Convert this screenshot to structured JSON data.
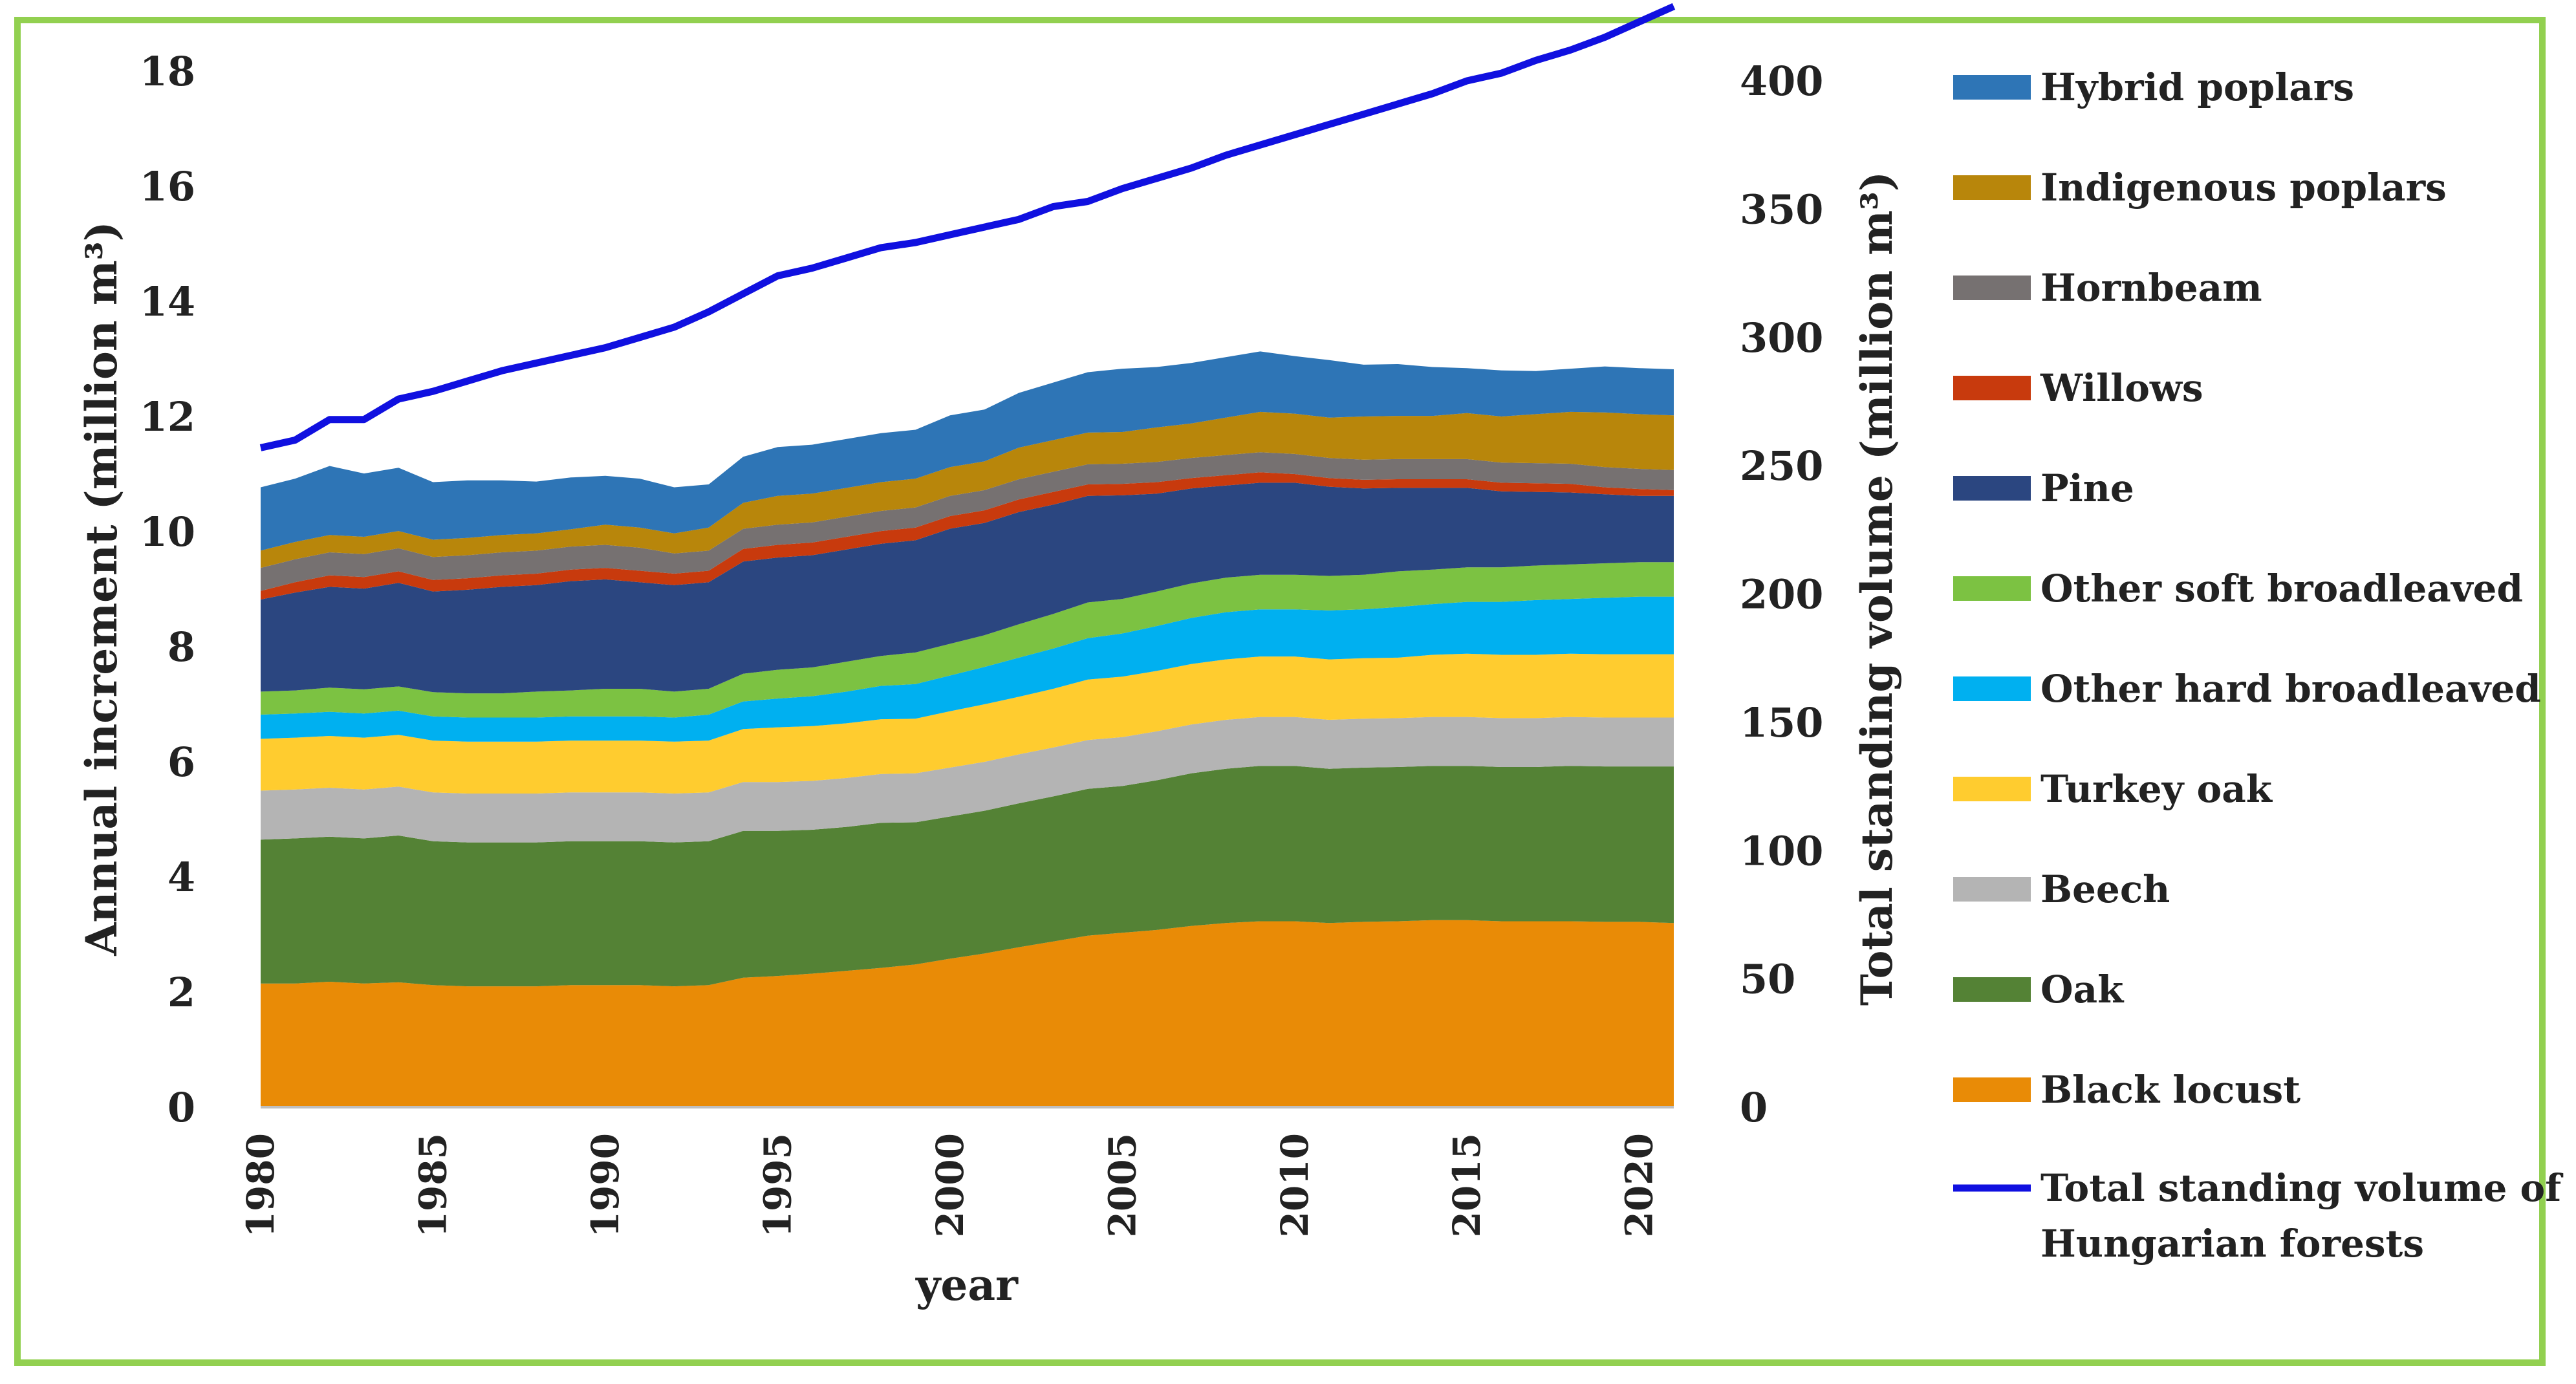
{
  "chart_data": {
    "type": "area",
    "stacked": true,
    "xlabel": "year",
    "ylabel": "Annual increment (million m³)",
    "y2label": "Total standing volume (million m³)",
    "ylim": [
      0,
      18
    ],
    "y2lim": [
      0,
      400
    ],
    "yticks": [
      "0",
      "2",
      "4",
      "6",
      "8",
      "10",
      "12",
      "14",
      "16",
      "18"
    ],
    "y2ticks": [
      "0",
      "50",
      "100",
      "150",
      "200",
      "250",
      "300",
      "350",
      "400"
    ],
    "xticks": [
      "1980",
      "1985",
      "1990",
      "1995",
      "2000",
      "2005",
      "2010",
      "2015",
      "2020"
    ],
    "legend_position": "right",
    "x": [
      1980,
      1981,
      1982,
      1983,
      1984,
      1985,
      1986,
      1987,
      1988,
      1989,
      1990,
      1991,
      1992,
      1993,
      1994,
      1995,
      1996,
      1997,
      1998,
      1999,
      2000,
      2001,
      2002,
      2003,
      2004,
      2005,
      2006,
      2007,
      2008,
      2009,
      2010,
      2011,
      2012,
      2013,
      2014,
      2015,
      2016,
      2017,
      2018,
      2019,
      2020,
      2021
    ],
    "series": [
      {
        "name": "Black locust",
        "color": "#e98b06",
        "values": [
          2.15,
          2.15,
          2.18,
          2.15,
          2.17,
          2.12,
          2.1,
          2.1,
          2.1,
          2.12,
          2.12,
          2.12,
          2.1,
          2.12,
          2.25,
          2.28,
          2.32,
          2.37,
          2.42,
          2.48,
          2.58,
          2.67,
          2.78,
          2.88,
          2.98,
          3.03,
          3.08,
          3.15,
          3.2,
          3.23,
          3.23,
          3.2,
          3.22,
          3.23,
          3.25,
          3.25,
          3.23,
          3.23,
          3.23,
          3.22,
          3.22,
          3.2
        ]
      },
      {
        "name": "Oak",
        "color": "#548235",
        "values": [
          2.5,
          2.52,
          2.52,
          2.52,
          2.55,
          2.5,
          2.5,
          2.5,
          2.5,
          2.5,
          2.5,
          2.5,
          2.5,
          2.5,
          2.55,
          2.52,
          2.5,
          2.5,
          2.52,
          2.47,
          2.47,
          2.48,
          2.5,
          2.52,
          2.55,
          2.55,
          2.6,
          2.65,
          2.68,
          2.7,
          2.7,
          2.68,
          2.68,
          2.68,
          2.68,
          2.68,
          2.68,
          2.68,
          2.7,
          2.7,
          2.7,
          2.72
        ]
      },
      {
        "name": "Beech",
        "color": "#b4b4b4",
        "values": [
          0.85,
          0.85,
          0.85,
          0.85,
          0.85,
          0.85,
          0.85,
          0.85,
          0.85,
          0.85,
          0.85,
          0.85,
          0.85,
          0.85,
          0.85,
          0.85,
          0.85,
          0.85,
          0.85,
          0.85,
          0.85,
          0.85,
          0.85,
          0.85,
          0.85,
          0.85,
          0.85,
          0.85,
          0.85,
          0.85,
          0.85,
          0.85,
          0.85,
          0.85,
          0.85,
          0.85,
          0.85,
          0.85,
          0.85,
          0.85,
          0.85,
          0.85
        ]
      },
      {
        "name": "Turkey oak",
        "color": "#ffcc2f",
        "values": [
          0.9,
          0.9,
          0.9,
          0.9,
          0.9,
          0.9,
          0.9,
          0.9,
          0.9,
          0.9,
          0.9,
          0.9,
          0.9,
          0.9,
          0.92,
          0.95,
          0.95,
          0.95,
          0.95,
          0.95,
          0.98,
          1.0,
          1.0,
          1.02,
          1.05,
          1.05,
          1.05,
          1.05,
          1.05,
          1.05,
          1.05,
          1.05,
          1.05,
          1.05,
          1.08,
          1.1,
          1.1,
          1.1,
          1.1,
          1.1,
          1.1,
          1.1
        ]
      },
      {
        "name": "Other hard broadleaved",
        "color": "#00b0f0",
        "values": [
          0.42,
          0.42,
          0.42,
          0.42,
          0.42,
          0.42,
          0.42,
          0.42,
          0.42,
          0.42,
          0.42,
          0.42,
          0.42,
          0.45,
          0.48,
          0.5,
          0.52,
          0.55,
          0.58,
          0.6,
          0.62,
          0.65,
          0.68,
          0.7,
          0.72,
          0.75,
          0.78,
          0.8,
          0.82,
          0.82,
          0.82,
          0.85,
          0.85,
          0.88,
          0.88,
          0.9,
          0.92,
          0.95,
          0.95,
          0.98,
          1.0,
          1.0
        ]
      },
      {
        "name": "Other soft broadleaved",
        "color": "#7cc242",
        "values": [
          0.4,
          0.4,
          0.42,
          0.42,
          0.42,
          0.42,
          0.42,
          0.42,
          0.45,
          0.45,
          0.48,
          0.48,
          0.45,
          0.45,
          0.48,
          0.5,
          0.5,
          0.52,
          0.52,
          0.55,
          0.55,
          0.55,
          0.58,
          0.6,
          0.62,
          0.6,
          0.6,
          0.6,
          0.6,
          0.6,
          0.6,
          0.6,
          0.6,
          0.62,
          0.6,
          0.6,
          0.6,
          0.6,
          0.6,
          0.6,
          0.6,
          0.6
        ]
      },
      {
        "name": "Pine",
        "color": "#2b4680",
        "values": [
          1.6,
          1.7,
          1.75,
          1.75,
          1.8,
          1.75,
          1.8,
          1.85,
          1.85,
          1.9,
          1.9,
          1.85,
          1.85,
          1.85,
          1.95,
          1.95,
          1.95,
          1.95,
          1.95,
          1.95,
          2.0,
          1.95,
          1.95,
          1.9,
          1.85,
          1.8,
          1.7,
          1.65,
          1.6,
          1.6,
          1.6,
          1.55,
          1.5,
          1.45,
          1.42,
          1.38,
          1.32,
          1.28,
          1.25,
          1.2,
          1.15,
          1.15
        ]
      },
      {
        "name": "Willows",
        "color": "#c83a0d",
        "values": [
          0.15,
          0.18,
          0.2,
          0.2,
          0.2,
          0.2,
          0.2,
          0.2,
          0.2,
          0.2,
          0.2,
          0.2,
          0.2,
          0.2,
          0.22,
          0.22,
          0.22,
          0.22,
          0.22,
          0.22,
          0.22,
          0.22,
          0.22,
          0.22,
          0.2,
          0.2,
          0.2,
          0.18,
          0.18,
          0.18,
          0.15,
          0.15,
          0.15,
          0.15,
          0.15,
          0.15,
          0.15,
          0.15,
          0.15,
          0.12,
          0.12,
          0.1
        ]
      },
      {
        "name": "Hornbeam",
        "color": "#767171",
        "values": [
          0.4,
          0.4,
          0.4,
          0.4,
          0.4,
          0.4,
          0.4,
          0.4,
          0.4,
          0.4,
          0.4,
          0.4,
          0.35,
          0.35,
          0.35,
          0.35,
          0.35,
          0.35,
          0.35,
          0.35,
          0.35,
          0.35,
          0.35,
          0.35,
          0.35,
          0.35,
          0.35,
          0.35,
          0.35,
          0.35,
          0.35,
          0.35,
          0.35,
          0.35,
          0.35,
          0.35,
          0.35,
          0.35,
          0.35,
          0.35,
          0.35,
          0.35
        ]
      },
      {
        "name": "Indigenous poplars",
        "color": "#b8860b",
        "values": [
          0.3,
          0.3,
          0.3,
          0.3,
          0.3,
          0.3,
          0.3,
          0.3,
          0.3,
          0.3,
          0.35,
          0.35,
          0.35,
          0.4,
          0.45,
          0.5,
          0.5,
          0.5,
          0.5,
          0.5,
          0.5,
          0.5,
          0.55,
          0.55,
          0.55,
          0.55,
          0.6,
          0.6,
          0.65,
          0.7,
          0.7,
          0.7,
          0.75,
          0.75,
          0.75,
          0.8,
          0.8,
          0.85,
          0.9,
          0.95,
          0.95,
          0.95
        ]
      },
      {
        "name": "Hybrid poplars",
        "color": "#2e75b6",
        "values": [
          1.1,
          1.1,
          1.2,
          1.1,
          1.1,
          1.0,
          1.0,
          0.95,
          0.9,
          0.9,
          0.85,
          0.85,
          0.8,
          0.75,
          0.8,
          0.85,
          0.85,
          0.85,
          0.85,
          0.85,
          0.9,
          0.9,
          0.95,
          1.0,
          1.05,
          1.1,
          1.05,
          1.05,
          1.05,
          1.05,
          1.0,
          1.0,
          0.9,
          0.9,
          0.85,
          0.78,
          0.8,
          0.75,
          0.75,
          0.8,
          0.8,
          0.8
        ]
      }
    ],
    "line_series": {
      "name": "Total standing volume of Hungarian forests",
      "axis": "right",
      "color": "#1010e0",
      "values": [
        257,
        260,
        268,
        268,
        276,
        279,
        283,
        287,
        290,
        293,
        296,
        300,
        304,
        310,
        317,
        324,
        327,
        331,
        335,
        337,
        340,
        343,
        346,
        351,
        353,
        358,
        362,
        366,
        371,
        375,
        379,
        383,
        387,
        391,
        395,
        400,
        403,
        408,
        412,
        417,
        423,
        429
      ]
    },
    "legend": [
      "Hybrid poplars",
      "Indigenous poplars",
      "Hornbeam",
      "Willows",
      "Pine",
      "Other soft broadleaved",
      "Other hard broadleaved",
      "Turkey oak",
      "Beech",
      "Oak",
      "Black locust"
    ],
    "line_legend_lines": [
      "Total standing volume of",
      "Hungarian forests"
    ]
  }
}
